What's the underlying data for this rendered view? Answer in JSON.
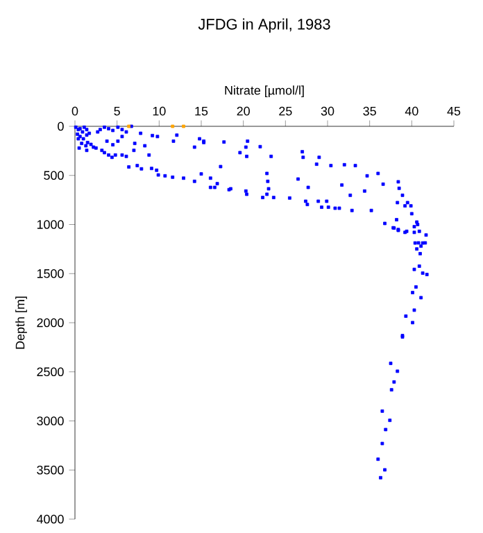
{
  "chart_data": {
    "type": "scatter",
    "title": "JFDG in April, 1983",
    "xlabel": "Nitrate [µmol/l]",
    "ylabel": "Depth [m]",
    "xlim": [
      0,
      45
    ],
    "xticks": [
      0,
      5,
      10,
      15,
      20,
      25,
      30,
      35,
      40,
      45
    ],
    "ylim": [
      4000,
      0
    ],
    "yticks": [
      0,
      500,
      1000,
      1500,
      2000,
      2500,
      3000,
      3500,
      4000
    ],
    "grid": false,
    "marker": "square",
    "series": [
      {
        "color": "#0000ff",
        "x": [
          0.1,
          0.4,
          0.6,
          0.9,
          1.1,
          1.4,
          0.3,
          0.6,
          1.0,
          1.4,
          1.7,
          0.8,
          1.3,
          1.5,
          1.9,
          2.5,
          3.0,
          2.7,
          3.5,
          4.0,
          4.5,
          5.1,
          5.6,
          6.1,
          5.6,
          5.1,
          4.5,
          3.8,
          3.2,
          3.5,
          4.0,
          4.4,
          4.8,
          5.6,
          6.1,
          1.4,
          2.2,
          0.4,
          0.5,
          9.2,
          9.8,
          7.8,
          6.7,
          11.7,
          12.1,
          14.8,
          15.3,
          15.3,
          14.2,
          17.7,
          20.5,
          20.3,
          20.4,
          19.6,
          22.0,
          23.3,
          27.0,
          27.1,
          29.0,
          28.7,
          30.4,
          32.0,
          33.3,
          8.3,
          8.8,
          7.0,
          7.1,
          6.4,
          7.4,
          7.9,
          9.1,
          9.7,
          9.9,
          10.7,
          11.6,
          12.9,
          14.2,
          15.0,
          16.1,
          16.9,
          16.1,
          16.6,
          17.3,
          18.5,
          18.3,
          20.3,
          20.4,
          22.3,
          22.8,
          22.9,
          23.0,
          22.8,
          23.6,
          25.5,
          26.5,
          27.7,
          27.4,
          27.6,
          28.9,
          29.3,
          29.9,
          30.1,
          30.9,
          31.4,
          31.7,
          32.7,
          32.9,
          34.4,
          34.7,
          35.2,
          36.0,
          36.6,
          36.8,
          38.4,
          38.5,
          38.9,
          38.3,
          39.5,
          39.2,
          39.9,
          40.0,
          38.2,
          37.9,
          38.4,
          39.4,
          40.3,
          40.6,
          40.9,
          41.7,
          41.6,
          40.8,
          41.1,
          37.8,
          38.4,
          39.2,
          40.3,
          40.7,
          40.4,
          41.3,
          40.6,
          41.0,
          40.9,
          40.3,
          41.3,
          41.8,
          40.5,
          40.1,
          41.1,
          40.3,
          39.3,
          40.1,
          38.9,
          38.9,
          37.5,
          38.3,
          37.9,
          37.6,
          36.5,
          37.4,
          36.9,
          36.5,
          36.0,
          36.8,
          36.3
        ],
        "values": [
          9,
          33,
          24,
          57,
          9,
          33,
          80,
          104,
          127,
          89,
          71,
          174,
          198,
          165,
          184,
          221,
          33,
          57,
          9,
          24,
          42,
          9,
          33,
          57,
          104,
          151,
          188,
          151,
          245,
          268,
          292,
          316,
          292,
          292,
          306,
          245,
          212,
          127,
          221,
          94,
          104,
          71,
          0,
          151,
          90,
          127,
          151,
          165,
          212,
          160,
          151,
          212,
          306,
          268,
          207,
          306,
          259,
          316,
          316,
          386,
          400,
          391,
          400,
          198,
          292,
          245,
          174,
          414,
          400,
          433,
          429,
          447,
          495,
          504,
          518,
          528,
          560,
          485,
          528,
          584,
          622,
          622,
          410,
          636,
          645,
          659,
          692,
          725,
          480,
          560,
          636,
          692,
          725,
          730,
          537,
          622,
          763,
          796,
          763,
          824,
          763,
          824,
          834,
          834,
          598,
          702,
          857,
          659,
          504,
          857,
          480,
          589,
          989,
          565,
          631,
          702,
          777,
          777,
          810,
          810,
          890,
          951,
          1036,
          1060,
          1069,
          1022,
          975,
          1069,
          1107,
          1187,
          1187,
          1220,
          1033,
          1051,
          1080,
          1080,
          1000,
          1188,
          1188,
          1249,
          1297,
          1424,
          1457,
          1495,
          1509,
          1636,
          1693,
          1745,
          1872,
          1933,
          1999,
          2145,
          2131,
          2414,
          2494,
          2603,
          2683,
          2900,
          2994,
          3088,
          3230,
          3390,
          3498,
          3578
        ]
      },
      {
        "color": "#ffa500",
        "x": [
          6.4,
          11.6,
          12.9
        ],
        "values": [
          0,
          0,
          0
        ]
      }
    ]
  }
}
